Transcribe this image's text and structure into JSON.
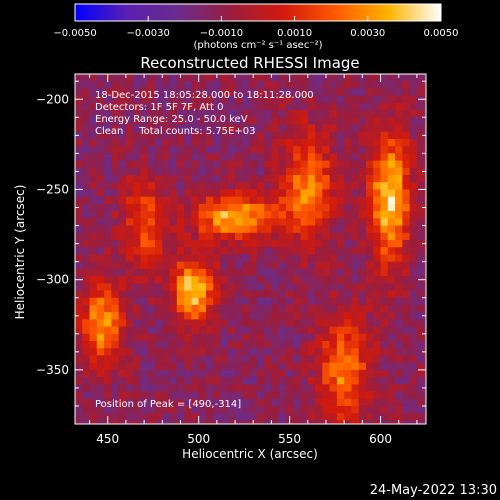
{
  "chart_data": {
    "type": "heatmap",
    "title": "Reconstructed RHESSI Image",
    "xlabel": "Heliocentric X (arcsec)",
    "ylabel": "Heliocentric Y (arcsec)",
    "xlim": [
      432,
      625
    ],
    "ylim": [
      -380,
      -186
    ],
    "xticks": [
      450,
      500,
      550,
      600
    ],
    "yticks": [
      -200,
      -250,
      -300,
      -350
    ],
    "xtick_labels": [
      "450",
      "500",
      "550",
      "600"
    ],
    "ytick_labels": [
      "−200",
      "−250",
      "−300",
      "−350"
    ],
    "colorbar": {
      "range": [
        -0.005,
        0.005
      ],
      "ticks": [
        -0.005,
        -0.003,
        -0.001,
        0.001,
        0.003,
        0.005
      ],
      "tick_labels": [
        "−0.0050",
        "−0.0030",
        "−0.0010",
        "0.0010",
        "0.0030",
        "0.0050"
      ],
      "unit_label": "(photons cm⁻² s⁻¹ asec⁻²)"
    },
    "colormap": [
      "#0000ff",
      "#5a1fb0",
      "#6a2c8a",
      "#9b1d3c",
      "#d21a0c",
      "#ff5a00",
      "#ffb400",
      "#ffffff"
    ],
    "pixel_size_arcsec": 4,
    "annotations": [
      "18-Dec-2015 18:05:28.000 to 18:11:28.000",
      "Detectors: 1F 5F 7F, Att 0",
      "Energy Range: 25.0 - 50.0 keV",
      "Clean     Total counts: 5.75E+03"
    ],
    "peak_label": "Position of Peak = [490,-314]",
    "peak_position": [
      490,
      -314
    ],
    "bright_sources": [
      {
        "x": 497,
        "y": -306,
        "sx": 8,
        "sy": 12,
        "amp": 0.0055
      },
      {
        "x": 520,
        "y": -265,
        "sx": 16,
        "sy": 9,
        "amp": 0.0048
      },
      {
        "x": 447,
        "y": -325,
        "sx": 8,
        "sy": 16,
        "amp": 0.0045
      },
      {
        "x": 605,
        "y": -255,
        "sx": 8,
        "sy": 26,
        "amp": 0.0052
      },
      {
        "x": 560,
        "y": -248,
        "sx": 10,
        "sy": 22,
        "amp": 0.0038
      },
      {
        "x": 580,
        "y": -350,
        "sx": 10,
        "sy": 20,
        "amp": 0.004
      },
      {
        "x": 470,
        "y": -270,
        "sx": 9,
        "sy": 18,
        "amp": 0.003
      }
    ]
  },
  "footer_date": "24-May-2022 13:30"
}
